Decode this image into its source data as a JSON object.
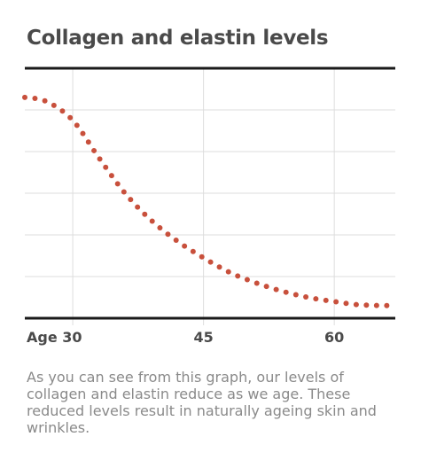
{
  "chart_data": {
    "type": "line",
    "title": "Collagen and elastin levels",
    "xlabel": "",
    "ylabel": "",
    "x_ticks": [
      {
        "value": 30,
        "label": "Age 30"
      },
      {
        "value": 45,
        "label": "45"
      },
      {
        "value": 60,
        "label": "60"
      }
    ],
    "xlim": [
      24.5,
      67
    ],
    "ylim": [
      0,
      6
    ],
    "grid": true,
    "line_style": "dotted",
    "color": "#c8503c",
    "series": [
      {
        "name": "",
        "x": [
          24.5,
          27,
          30,
          33,
          36,
          39,
          42,
          45,
          48,
          51,
          54,
          57,
          60,
          63,
          67
        ],
        "y": [
          5.3,
          5.2,
          4.75,
          3.85,
          3.0,
          2.35,
          1.85,
          1.45,
          1.1,
          0.85,
          0.65,
          0.5,
          0.4,
          0.32,
          0.3
        ]
      }
    ]
  },
  "caption": "As you can see from this graph, our levels of collagen and elastin reduce as we age. These reduced levels result in naturally ageing skin and wrinkles."
}
